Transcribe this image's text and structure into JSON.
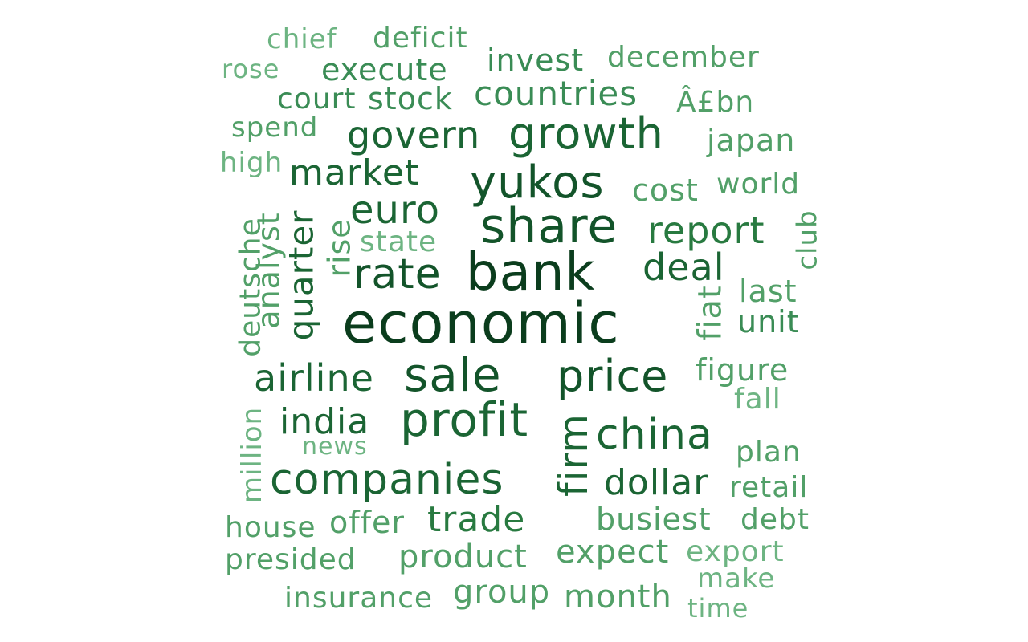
{
  "colors": {
    "background": "#ffffff",
    "tier1": "#0b3d1d",
    "tier2": "#13542a",
    "tier3": "#1b6534",
    "tier4": "#287a40",
    "tier5": "#3a8c55",
    "tier6": "#52a068",
    "tier7": "#6db482"
  },
  "words": {
    "economic": "economic",
    "bank": "bank",
    "share": "share",
    "yukos": "yukos",
    "sale": "sale",
    "price": "price",
    "profit": "profit",
    "china": "china",
    "companies": "companies",
    "growth": "growth",
    "govern": "govern",
    "market": "market",
    "euro": "euro",
    "rate": "rate",
    "deal": "deal",
    "report": "report",
    "airline": "airline",
    "india": "india",
    "firm": "firm",
    "dollar": "dollar",
    "trade": "trade",
    "quarter": "quarter",
    "countries": "countries",
    "cost": "cost",
    "stock": "stock",
    "execute": "execute",
    "invest": "invest",
    "december": "december",
    "deficit": "deficit",
    "chief": "chief",
    "rose": "rose",
    "court": "court",
    "pound_bn": "Â£bn",
    "spend": "spend",
    "japan": "japan",
    "high": "high",
    "world": "world",
    "state": "state",
    "rise": "rise",
    "analyst": "analyst",
    "deutsche": "deutsche",
    "club": "club",
    "last": "last",
    "fiat": "fiat",
    "unit": "unit",
    "figure": "figure",
    "fall": "fall",
    "news": "news",
    "million": "million",
    "plan": "plan",
    "retail": "retail",
    "house": "house",
    "offer": "offer",
    "busiest": "busiest",
    "debt": "debt",
    "presided": "presided",
    "product": "product",
    "expect": "expect",
    "export": "export",
    "make": "make",
    "insurance": "insurance",
    "group": "group",
    "month": "month",
    "time": "time"
  }
}
